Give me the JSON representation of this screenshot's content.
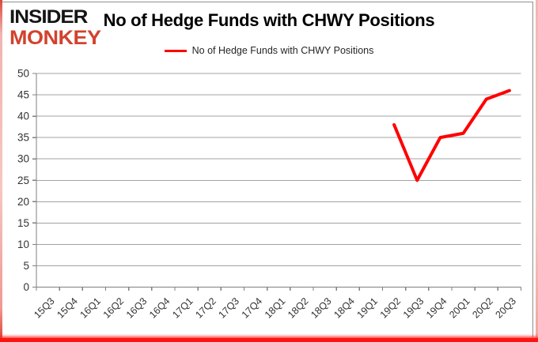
{
  "logo": {
    "line1": "INSIDER",
    "line2": "MONKEY",
    "line1_color": "#151515",
    "line2_color": "#d2422d"
  },
  "header": {
    "title": "No of Hedge Funds with CHWY Positions"
  },
  "legend": {
    "label": "No of Hedge Funds with CHWY Positions",
    "line_color": "#ff0000"
  },
  "chart_data": {
    "type": "line",
    "title": "No of Hedge Funds with CHWY Positions",
    "xlabel": "",
    "ylabel": "",
    "categories": [
      "15Q3",
      "15Q4",
      "16Q1",
      "16Q2",
      "16Q3",
      "16Q4",
      "17Q1",
      "17Q2",
      "17Q3",
      "17Q4",
      "18Q1",
      "18Q2",
      "18Q3",
      "18Q4",
      "19Q1",
      "19Q2",
      "19Q3",
      "19Q4",
      "20Q1",
      "20Q2",
      "20Q3"
    ],
    "series": [
      {
        "name": "No of Hedge Funds with CHWY Positions",
        "color": "#ff0000",
        "values": [
          null,
          null,
          null,
          null,
          null,
          null,
          null,
          null,
          null,
          null,
          null,
          null,
          null,
          null,
          null,
          38,
          25,
          35,
          36,
          44,
          46
        ]
      }
    ],
    "ylim": [
      0,
      50
    ],
    "yticks": [
      0,
      5,
      10,
      15,
      20,
      25,
      30,
      35,
      40,
      45,
      50
    ],
    "grid": true,
    "legend_position": "top",
    "gridline_color": "#a3a3a3",
    "axis_color": "#808080",
    "tick_label_color": "#333333"
  }
}
